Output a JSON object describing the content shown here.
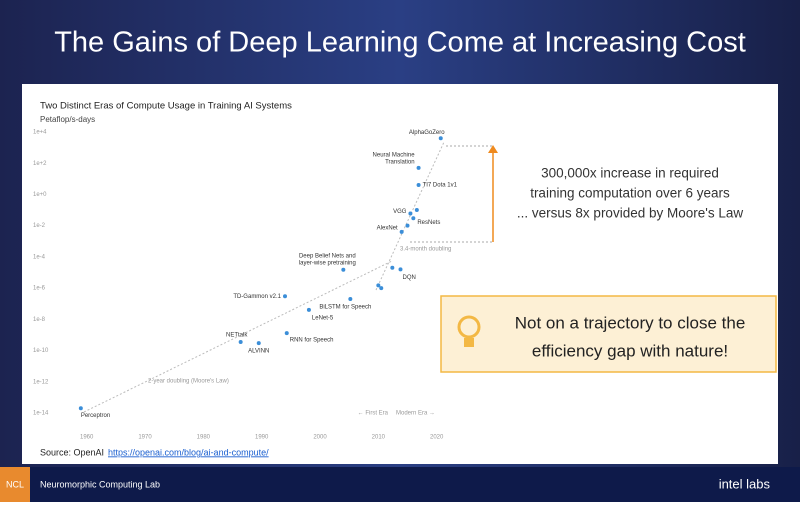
{
  "slide": {
    "title": "The Gains of Deep Learning Come at Increasing Cost",
    "callout": [
      "300,000x increase in required",
      "training computation over 6 years",
      "... versus 8x provided by Moore's Law"
    ],
    "highlight": [
      "Not on a trajectory to close the",
      "efficiency gap with nature!"
    ],
    "source": "Source: OpenAI",
    "source_link": "https://openai.com/blog/ai-and-compute/",
    "footer": {
      "badge": "NCL",
      "lab": "Neuromorphic Computing Lab",
      "logo": "intel labs"
    }
  },
  "chart_data": {
    "type": "scatter",
    "title": "Two Distinct Eras of Compute Usage in Training AI Systems",
    "y_label": "Petaflop/s-days",
    "log_y": true,
    "grid": false,
    "xlim": [
      1952,
      2024
    ],
    "xticks": [
      1960,
      1970,
      1980,
      1990,
      2000,
      2010,
      2020
    ],
    "ylim": [
      1e-14,
      10000.0
    ],
    "yticks": [
      {
        "value": 1e-14,
        "label": "1e-14"
      },
      {
        "value": 1e-12,
        "label": "1e-12"
      },
      {
        "value": 1e-10,
        "label": "1e-10"
      },
      {
        "value": 1e-08,
        "label": "1e-8"
      },
      {
        "value": 1e-06,
        "label": "1e-6"
      },
      {
        "value": 0.0001,
        "label": "1e-4"
      },
      {
        "value": 0.01,
        "label": "1e-2"
      },
      {
        "value": 1,
        "label": "1e+0"
      },
      {
        "value": 100,
        "label": "1e+2"
      },
      {
        "value": 10000,
        "label": "1e+4"
      }
    ],
    "annotations": [
      "2-year doubling (Moore's Law)",
      "3.4-month doubling",
      "← First Era",
      "Modern Era →"
    ],
    "series": [
      {
        "color": "#3b8ed8",
        "x": [
          1959,
          1986.4,
          1989.5,
          1994.3,
          1994,
          1998.1,
          2005.2,
          2004,
          2010,
          2010.5,
          2012.4,
          2013.8,
          2014,
          2015,
          2015.5,
          2016,
          2016.6,
          2016.9,
          2016.9,
          2020.7
        ],
        "values": [
          2e-14,
          3.5e-10,
          3e-10,
          1.3e-09,
          3e-07,
          4e-08,
          2e-07,
          1.5e-05,
          1.5e-06,
          1e-06,
          2e-05,
          1.6e-05,
          0.004,
          0.01,
          0.06,
          0.03,
          0.1,
          50,
          4,
          4000
        ],
        "labels": [
          "Perceptron",
          "NETtalk",
          "ALVINN",
          "RNN for Speech",
          "TD-Gammon v2.1",
          "LeNet-5",
          "BiLSTM for Speech",
          [
            "Deep Belief Nets and",
            "layer-wise pretraining"
          ],
          null,
          null,
          null,
          "DQN",
          "AlexNet",
          null,
          "VGG",
          "ResNets",
          null,
          [
            "Neural Machine",
            "Translation"
          ],
          "TI7 Dota 1v1",
          "AlphaGoZero"
        ]
      }
    ]
  }
}
